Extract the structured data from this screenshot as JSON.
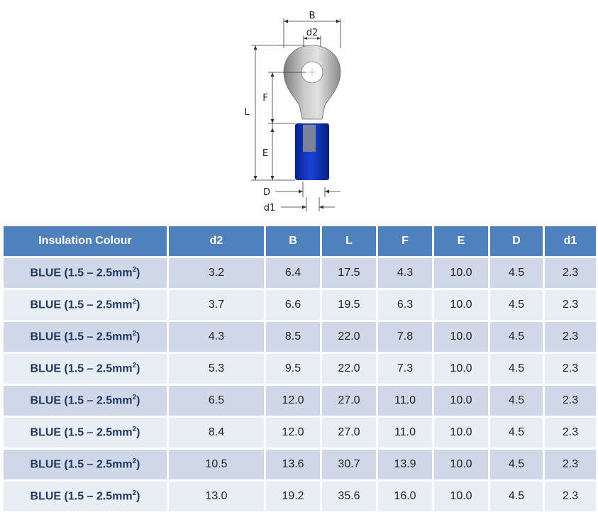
{
  "diagram": {
    "labels": {
      "B": "B",
      "d2": "d2",
      "L": "L",
      "F": "F",
      "E": "E",
      "D": "D",
      "d1": "d1"
    }
  },
  "table": {
    "columns": [
      "Insulation Colour",
      "d2",
      "B",
      "L",
      "F",
      "E",
      "D",
      "d1"
    ],
    "rows": [
      {
        "colour": "BLUE (1.5 – 2.5mm",
        "sup": "2",
        "close": ")",
        "d2": "3.2",
        "B": "6.4",
        "L": "17.5",
        "F": "4.3",
        "E": "10.0",
        "D": "4.5",
        "d1": "2.3"
      },
      {
        "colour": "BLUE (1.5 – 2.5mm",
        "sup": "2",
        "close": ")",
        "d2": "3.7",
        "B": "6.6",
        "L": "19.5",
        "F": "6.3",
        "E": "10.0",
        "D": "4.5",
        "d1": "2.3"
      },
      {
        "colour": "BLUE (1.5 – 2.5mm",
        "sup": "2",
        "close": ")",
        "d2": "4.3",
        "B": "8.5",
        "L": "22.0",
        "F": "7.8",
        "E": "10.0",
        "D": "4.5",
        "d1": "2.3"
      },
      {
        "colour": "BLUE (1.5 – 2.5mm",
        "sup": "2",
        "close": ")",
        "d2": "5.3",
        "B": "9.5",
        "L": "22.0",
        "F": "7.3",
        "E": "10.0",
        "D": "4.5",
        "d1": "2.3"
      },
      {
        "colour": "BLUE (1.5 – 2.5mm",
        "sup": "2",
        "close": ")",
        "d2": "6.5",
        "B": "12.0",
        "L": "27.0",
        "F": "11.0",
        "E": "10.0",
        "D": "4.5",
        "d1": "2.3"
      },
      {
        "colour": "BLUE (1.5 – 2.5mm",
        "sup": "2",
        "close": ")",
        "d2": "8.4",
        "B": "12.0",
        "L": "27.0",
        "F": "11.0",
        "E": "10.0",
        "D": "4.5",
        "d1": "2.3"
      },
      {
        "colour": "BLUE (1.5 – 2.5mm",
        "sup": "2",
        "close": ")",
        "d2": "10.5",
        "B": "13.6",
        "L": "30.7",
        "F": "13.9",
        "E": "10.0",
        "D": "4.5",
        "d1": "2.3"
      },
      {
        "colour": "BLUE (1.5 – 2.5mm",
        "sup": "2",
        "close": ")",
        "d2": "13.0",
        "B": "19.2",
        "L": "35.6",
        "F": "16.0",
        "E": "10.0",
        "D": "4.5",
        "d1": "2.3"
      }
    ]
  },
  "colors": {
    "header_bg": "#4f81bd",
    "row_dark": "#d0d8e8",
    "row_light": "#e9edf4",
    "insulation_blue": "#0a2fb0",
    "metal_grey": "#a9a9a9"
  }
}
